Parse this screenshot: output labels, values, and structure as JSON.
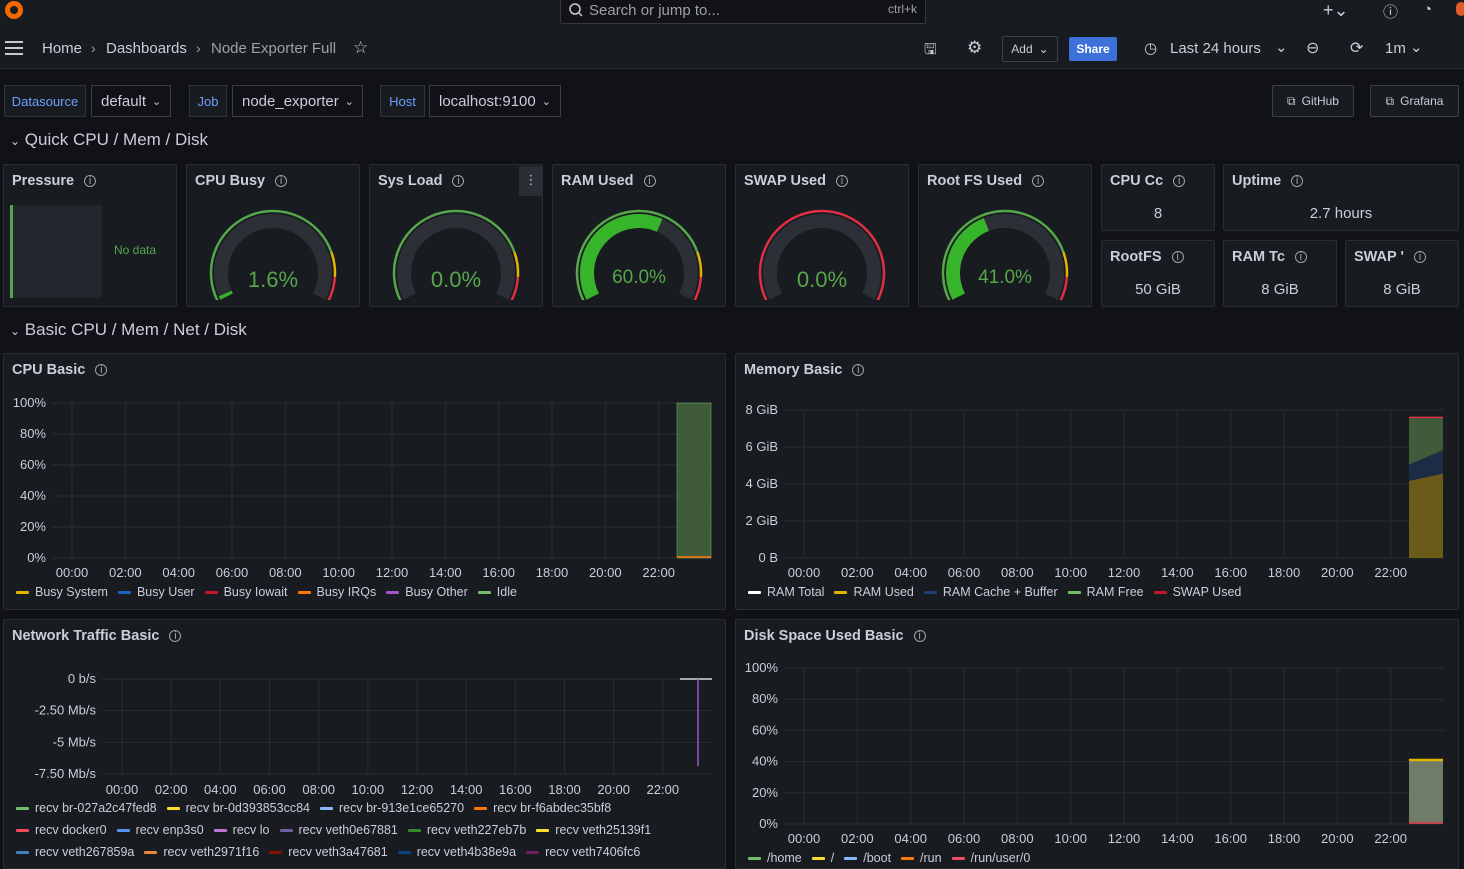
{
  "topbar": {
    "search_placeholder": "Search or jump to...",
    "search_shortcut": "ctrl+k"
  },
  "breadcrumb": {
    "home": "Home",
    "dashboards": "Dashboards",
    "current": "Node Exporter Full"
  },
  "toolbar": {
    "add": "Add",
    "share": "Share",
    "time_range": "Last 24 hours",
    "refresh": "1m"
  },
  "variables": {
    "datasource_label": "Datasource",
    "datasource_value": "default",
    "job_label": "Job",
    "job_value": "node_exporter",
    "host_label": "Host",
    "host_value": "localhost:9100"
  },
  "links": {
    "github": "GitHub",
    "grafana": "Grafana"
  },
  "rows": {
    "quick": "Quick CPU / Mem / Disk",
    "basic": "Basic CPU / Mem / Net / Disk"
  },
  "stats": {
    "pressure": {
      "title": "Pressure",
      "value": "No data"
    },
    "cpu_busy": {
      "title": "CPU Busy",
      "value": "1.6%",
      "level": 1.6
    },
    "sys_load": {
      "title": "Sys Load",
      "value": "0.0%",
      "level": 0
    },
    "ram_used": {
      "title": "RAM Used",
      "value": "60.0%",
      "level": 60
    },
    "swap_used": {
      "title": "SWAP Used",
      "value": "0.0%",
      "level": 0
    },
    "root_fs": {
      "title": "Root FS Used",
      "value": "41.0%",
      "level": 41
    },
    "cpu_cores": {
      "title": "CPU Cc",
      "value": "8"
    },
    "uptime": {
      "title": "Uptime",
      "value": "2.7 hours"
    },
    "rootfs_total": {
      "title": "RootFS",
      "value": "50 GiB"
    },
    "ram_total": {
      "title": "RAM Tc",
      "value": "8 GiB"
    },
    "swap_total": {
      "title": "SWAP '",
      "value": "8 GiB"
    }
  },
  "colors": {
    "green": "#56a64b",
    "yellow": "#e0b400",
    "red": "#e02f44",
    "orange": "#ff780a",
    "blue": "#1f60c4",
    "lightblue": "#8ab8ff",
    "purple": "#a352cc"
  },
  "chart_data": [
    {
      "id": "cpu_basic",
      "type": "area",
      "title": "CPU Basic",
      "x": [
        "00:00",
        "02:00",
        "04:00",
        "06:00",
        "08:00",
        "10:00",
        "12:00",
        "14:00",
        "16:00",
        "18:00",
        "20:00",
        "22:00"
      ],
      "yticks": [
        "100%",
        "80%",
        "60%",
        "40%",
        "20%",
        "0%"
      ],
      "ylim": [
        0,
        100
      ],
      "series": [
        {
          "name": "Busy System",
          "color": "#e0b400"
        },
        {
          "name": "Busy User",
          "color": "#1f60c4"
        },
        {
          "name": "Busy Iowait",
          "color": "#c4162a"
        },
        {
          "name": "Busy IRQs",
          "color": "#ff780a"
        },
        {
          "name": "Busy Other",
          "color": "#a352cc"
        },
        {
          "name": "Idle",
          "color": "#73bf69"
        }
      ]
    },
    {
      "id": "memory_basic",
      "type": "area",
      "title": "Memory Basic",
      "x": [
        "00:00",
        "02:00",
        "04:00",
        "06:00",
        "08:00",
        "10:00",
        "12:00",
        "14:00",
        "16:00",
        "18:00",
        "20:00",
        "22:00"
      ],
      "yticks": [
        "8 GiB",
        "6 GiB",
        "4 GiB",
        "2 GiB",
        "0 B"
      ],
      "ylim": [
        0,
        8
      ],
      "series": [
        {
          "name": "RAM Total",
          "color": "#ffffff"
        },
        {
          "name": "RAM Used",
          "color": "#e0b400"
        },
        {
          "name": "RAM Cache + Buffer",
          "color": "#1f3d6e"
        },
        {
          "name": "RAM Free",
          "color": "#73bf69"
        },
        {
          "name": "SWAP Used",
          "color": "#c4162a"
        }
      ]
    },
    {
      "id": "network_basic",
      "type": "line",
      "title": "Network Traffic Basic",
      "x": [
        "00:00",
        "02:00",
        "04:00",
        "06:00",
        "08:00",
        "10:00",
        "12:00",
        "14:00",
        "16:00",
        "18:00",
        "20:00",
        "22:00"
      ],
      "yticks": [
        "0 b/s",
        "-2.50 Mb/s",
        "-5 Mb/s",
        "-7.50 Mb/s"
      ],
      "series": [
        {
          "name": "recv br-027a2c47fed8",
          "color": "#73bf69"
        },
        {
          "name": "recv br-0d393853cc84",
          "color": "#fade2a"
        },
        {
          "name": "recv br-913e1ce65270",
          "color": "#8ab8ff"
        },
        {
          "name": "recv br-f6abdec35bf8",
          "color": "#ff780a"
        },
        {
          "name": "recv docker0",
          "color": "#f2495c"
        },
        {
          "name": "recv enp3s0",
          "color": "#5794f2"
        },
        {
          "name": "recv lo",
          "color": "#b877d9"
        },
        {
          "name": "recv veth0e67881",
          "color": "#705da0"
        },
        {
          "name": "recv veth227eb7b",
          "color": "#37872d"
        },
        {
          "name": "recv veth25139f1",
          "color": "#fade2a"
        },
        {
          "name": "recv veth267859a",
          "color": "#447ebc"
        },
        {
          "name": "recv veth2971f16",
          "color": "#ef843c"
        },
        {
          "name": "recv veth3a47681",
          "color": "#890f02"
        },
        {
          "name": "recv veth4b38e9a",
          "color": "#0a437c"
        },
        {
          "name": "recv veth7406fc6",
          "color": "#6d1f62"
        }
      ]
    },
    {
      "id": "disk_basic",
      "type": "area",
      "title": "Disk Space Used Basic",
      "x": [
        "00:00",
        "02:00",
        "04:00",
        "06:00",
        "08:00",
        "10:00",
        "12:00",
        "14:00",
        "16:00",
        "18:00",
        "20:00",
        "22:00"
      ],
      "yticks": [
        "100%",
        "80%",
        "60%",
        "40%",
        "20%",
        "0%"
      ],
      "ylim": [
        0,
        100
      ],
      "series": [
        {
          "name": "/home",
          "color": "#73bf69"
        },
        {
          "name": "/",
          "color": "#fade2a"
        },
        {
          "name": "/boot",
          "color": "#8ab8ff"
        },
        {
          "name": "/run",
          "color": "#ff780a"
        },
        {
          "name": "/run/user/0",
          "color": "#f2495c"
        }
      ]
    }
  ]
}
